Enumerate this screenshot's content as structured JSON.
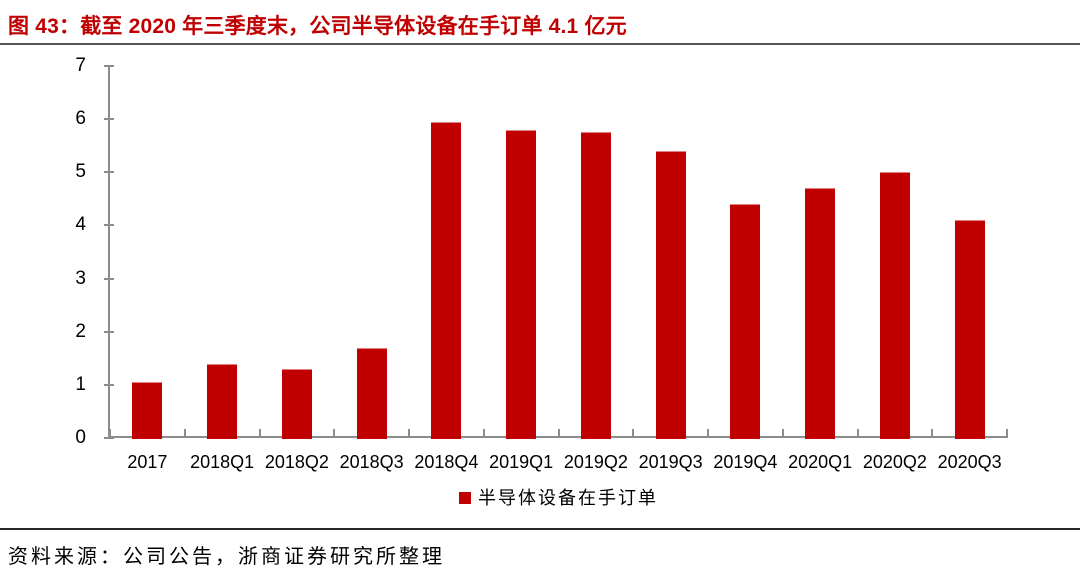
{
  "title": "图 43：截至 2020 年三季度末，公司半导体设备在手订单 4.1 亿元",
  "source": "资料来源：公司公告，浙商证券研究所整理",
  "legend": {
    "label": "半导体设备在手订单"
  },
  "colors": {
    "red": "#C00000",
    "axis": "#8C8C8C",
    "title_rule": "#555555",
    "source_rule": "#262626",
    "text": "#000000"
  },
  "chart_data": {
    "type": "bar",
    "title": "截至2020年三季度末，公司半导体设备在手订单4.1亿元",
    "categories": [
      "2017",
      "2018Q1",
      "2018Q2",
      "2018Q3",
      "2018Q4",
      "2019Q1",
      "2019Q2",
      "2019Q3",
      "2019Q4",
      "2020Q1",
      "2020Q2",
      "2020Q3"
    ],
    "values": [
      1.05,
      1.4,
      1.3,
      1.7,
      5.95,
      5.8,
      5.75,
      5.4,
      4.4,
      4.7,
      5.0,
      4.1
    ],
    "series_name": "半导体设备在手订单",
    "unit": "亿元",
    "xlabel": "",
    "ylabel": "",
    "ylim": [
      0,
      7
    ],
    "yticks": [
      0,
      1,
      2,
      3,
      4,
      5,
      6,
      7
    ],
    "grid": false,
    "legend_position": "bottom",
    "bar_color": "#C00000"
  }
}
